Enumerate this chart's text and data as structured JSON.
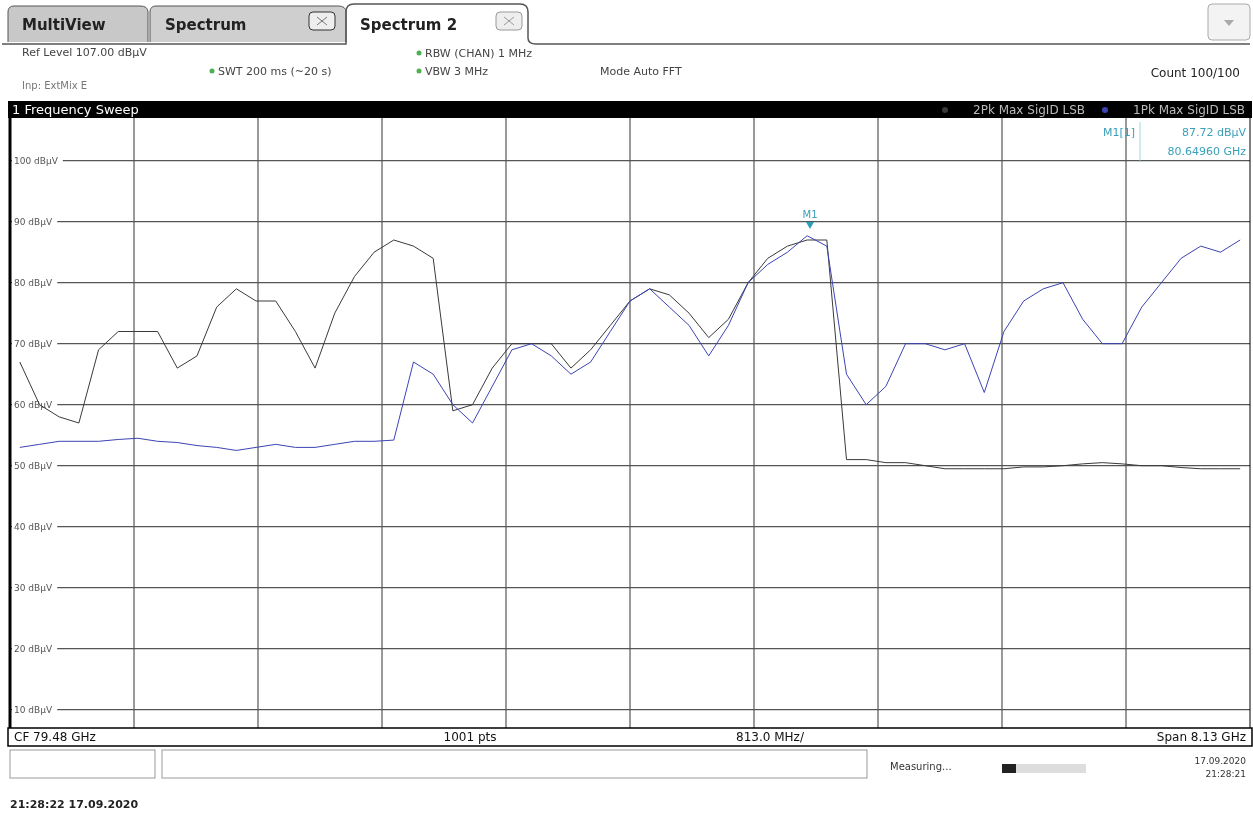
{
  "chart_data": {
    "type": "line",
    "title": "1 Frequency Sweep",
    "categories": [
      null,
      null,
      null,
      null,
      null,
      null,
      null,
      null,
      null,
      null,
      null,
      null,
      null,
      null,
      null,
      null,
      null,
      null,
      null,
      null,
      null,
      null,
      null,
      null,
      null,
      null,
      null,
      null,
      null,
      null,
      null,
      null,
      null,
      null,
      null,
      null,
      null,
      null,
      null,
      null,
      null,
      null,
      null,
      null,
      null,
      null,
      null,
      null,
      null,
      null,
      null,
      null,
      null,
      null,
      null,
      null,
      null,
      null,
      null,
      null,
      null,
      null,
      null
    ],
    "ylim": [
      7,
      107
    ],
    "yticks": [
      {
        "value": 10,
        "label": "10 dBµV"
      },
      {
        "value": 20,
        "label": "20 dBµV"
      },
      {
        "value": 30,
        "label": "30 dBµV"
      },
      {
        "value": 40,
        "label": "40 dBµV"
      },
      {
        "value": 50,
        "label": "50 dBµV"
      },
      {
        "value": 60,
        "label": "60 dBµV"
      },
      {
        "value": 70,
        "label": "70 dBµV"
      },
      {
        "value": 80,
        "label": "80 dBµV"
      },
      {
        "value": 90,
        "label": "90 dBµV"
      },
      {
        "value": 100,
        "label": "100 dBµV"
      }
    ],
    "grid": true,
    "legend": "top right",
    "series": [
      {
        "name": "2Pk Max SigID LSB",
        "color": "#3a3a3a",
        "values": [
          67,
          60,
          58,
          57,
          69,
          72,
          72,
          72,
          66,
          68,
          76,
          79,
          77,
          77,
          72,
          66,
          75,
          81,
          85,
          87,
          86,
          84,
          59,
          60,
          66,
          70,
          70,
          70,
          66,
          69,
          73,
          77,
          79,
          78,
          75,
          71,
          74,
          80,
          84,
          86,
          87,
          87,
          51,
          51,
          50.5,
          50.5,
          50,
          49.5,
          49.5,
          49.5,
          49.5,
          49.8,
          49.8,
          50,
          50.3,
          50.5,
          50.3,
          50,
          50,
          49.7,
          49.5,
          49.5,
          49.5
        ]
      },
      {
        "name": "1Pk Max SigID LSB",
        "color": "#3c44b4",
        "values": [
          53,
          53.5,
          54,
          54,
          54,
          54.3,
          54.5,
          54,
          53.8,
          53.3,
          53,
          52.5,
          53,
          53.5,
          53,
          53,
          53.5,
          54,
          54,
          54.2,
          67,
          65,
          60,
          57,
          63,
          69,
          70,
          68,
          65,
          67,
          72,
          77,
          79,
          76,
          73,
          68,
          73,
          80,
          83,
          85,
          87.7,
          86,
          65,
          60,
          63,
          70,
          70,
          69,
          70,
          62,
          72,
          77,
          79,
          80,
          74,
          70,
          70,
          76,
          80,
          84,
          86,
          85,
          87
        ]
      }
    ],
    "annotations": [
      "MultiView",
      "Spectrum",
      "Spectrum 2",
      "Ref Level 107.00 dBµV",
      "Inp: ExtMix E",
      "SWT 200 ms (~20 s)",
      "RBW (CHAN) 1 MHz",
      "VBW 3 MHz",
      "Mode Auto FFT",
      "Count 100/100",
      "M1[1]",
      "87.72 dBµV",
      "80.64960 GHz",
      "CF 79.48 GHz",
      "1001 pts",
      "813.0 MHz/",
      "Span 8.13 GHz",
      "Measuring...",
      "17.09.2020",
      "21:28:21",
      "21:28:22 17.09.2020",
      "M1"
    ]
  }
}
